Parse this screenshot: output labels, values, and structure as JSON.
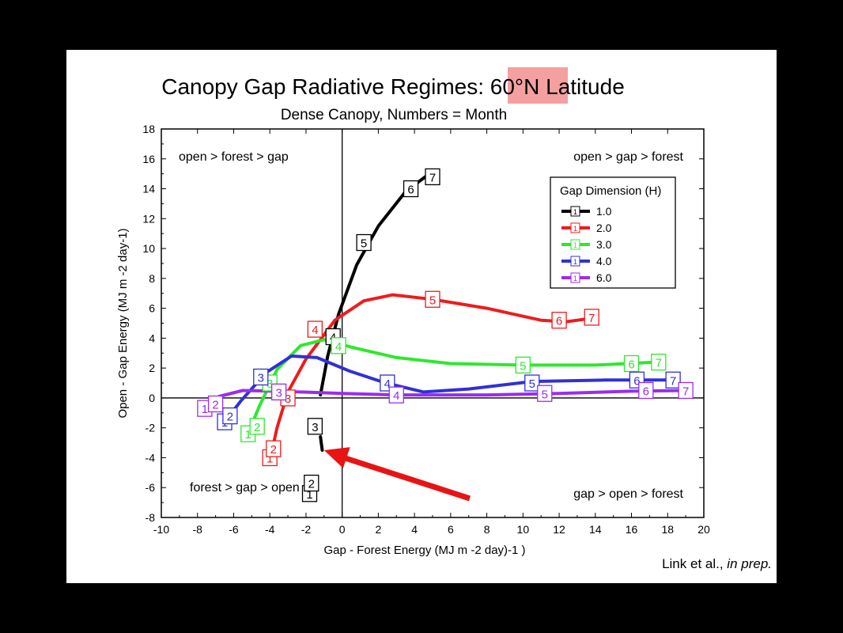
{
  "slide": {
    "credit_text": "Link et al., ",
    "credit_italic": "in prep."
  },
  "chart_data": {
    "type": "line",
    "title_parts": [
      "Canopy Gap Radiative Regimes: ",
      "60°N",
      " Latitude"
    ],
    "title_highlight_color": "#f4a0a0",
    "subtitle": "Dense Canopy, Numbers = Month",
    "xlabel": "Gap - Forest Energy (MJ m -2 day)-1 )",
    "ylabel": "Open - Gap Energy (MJ m -2 day-1)",
    "xlim": [
      -10,
      20
    ],
    "ylim": [
      -8,
      18
    ],
    "xticks": [
      "-10",
      "-8",
      "-6",
      "-4",
      "-2",
      "0",
      "2",
      "4",
      "6",
      "8",
      "10",
      "12",
      "14",
      "16",
      "18",
      "20"
    ],
    "yticks": [
      "-8",
      "-6",
      "-4",
      "-2",
      "0",
      "2",
      "4",
      "6",
      "8",
      "10",
      "12",
      "14",
      "16",
      "18"
    ],
    "grid": false,
    "quadrant_labels": [
      "open > forest > gap",
      "open > gap > forest",
      "forest > gap > open",
      "gap > open > forest"
    ],
    "legend": {
      "title": "Gap Dimension (H)",
      "position": "top-right",
      "marker_text": "1",
      "entries": [
        {
          "label": "1.0",
          "color": "#000000"
        },
        {
          "label": "2.0",
          "color": "#ee1c1c"
        },
        {
          "label": "3.0",
          "color": "#2ee82e"
        },
        {
          "label": "4.0",
          "color": "#3030d8"
        },
        {
          "label": "6.0",
          "color": "#9a2cf0"
        }
      ]
    },
    "series": [
      {
        "name": "1.0",
        "color": "#000000",
        "points": [
          {
            "m": "1",
            "x": -1.8,
            "y": -6.4
          },
          {
            "m": "2",
            "x": -1.7,
            "y": -5.7
          },
          {
            "m": "3",
            "x": -1.5,
            "y": -1.9
          },
          {
            "m": "4",
            "x": -0.5,
            "y": 4.1
          },
          {
            "m": "5",
            "x": 1.2,
            "y": 10.4
          },
          {
            "m": "6",
            "x": 3.8,
            "y": 14.0
          },
          {
            "m": "7",
            "x": 5.0,
            "y": 14.8
          }
        ],
        "curve": [
          [
            -1.1,
            -3.5
          ],
          [
            -1.2,
            -2.6
          ]
        ],
        "curve2": [
          [
            -1.2,
            0.2
          ],
          [
            -0.8,
            2.8
          ],
          [
            -0.2,
            5.6
          ],
          [
            0.8,
            8.9
          ],
          [
            2.0,
            11.5
          ],
          [
            3.5,
            13.8
          ],
          [
            4.6,
            14.8
          ]
        ]
      },
      {
        "name": "2.0",
        "color": "#ee1c1c",
        "points": [
          {
            "m": "1",
            "x": -4.0,
            "y": -4.0
          },
          {
            "m": "2",
            "x": -3.8,
            "y": -3.4
          },
          {
            "m": "3",
            "x": -3.0,
            "y": 0.0
          },
          {
            "m": "4",
            "x": -1.5,
            "y": 4.6
          },
          {
            "m": "5",
            "x": 5.0,
            "y": 6.6
          },
          {
            "m": "6",
            "x": 12.0,
            "y": 5.2
          },
          {
            "m": "7",
            "x": 13.8,
            "y": 5.4
          }
        ],
        "curve": [
          [
            -4.0,
            -4.2
          ],
          [
            -3.6,
            -2.0
          ],
          [
            -3.0,
            0.4
          ],
          [
            -2.0,
            2.6
          ],
          [
            -0.4,
            5.2
          ],
          [
            1.2,
            6.5
          ],
          [
            2.8,
            6.9
          ],
          [
            5.0,
            6.6
          ],
          [
            8.0,
            6.0
          ],
          [
            11.0,
            5.2
          ],
          [
            12.4,
            5.1
          ],
          [
            13.6,
            5.3
          ]
        ]
      },
      {
        "name": "3.0",
        "color": "#2ee82e",
        "points": [
          {
            "m": "1",
            "x": -5.2,
            "y": -2.4
          },
          {
            "m": "2",
            "x": -4.7,
            "y": -1.9
          },
          {
            "m": "3",
            "x": -4.0,
            "y": 1.0
          },
          {
            "m": "4",
            "x": -0.2,
            "y": 3.5
          },
          {
            "m": "5",
            "x": 10.0,
            "y": 2.2
          },
          {
            "m": "6",
            "x": 16.0,
            "y": 2.3
          },
          {
            "m": "7",
            "x": 17.5,
            "y": 2.4
          }
        ],
        "curve": [
          [
            -5.2,
            -2.4
          ],
          [
            -4.6,
            -0.6
          ],
          [
            -3.6,
            1.9
          ],
          [
            -2.3,
            3.5
          ],
          [
            -1.0,
            3.9
          ],
          [
            0.5,
            3.4
          ],
          [
            3.0,
            2.7
          ],
          [
            6.0,
            2.3
          ],
          [
            10.0,
            2.2
          ],
          [
            14.0,
            2.2
          ],
          [
            17.4,
            2.4
          ]
        ]
      },
      {
        "name": "4.0",
        "color": "#3030d8",
        "points": [
          {
            "m": "1",
            "x": -6.5,
            "y": -1.6
          },
          {
            "m": "2",
            "x": -6.2,
            "y": -1.2
          },
          {
            "m": "3",
            "x": -4.5,
            "y": 1.4
          },
          {
            "m": "4",
            "x": 2.5,
            "y": 1.0
          },
          {
            "m": "5",
            "x": 10.5,
            "y": 1.0
          },
          {
            "m": "6",
            "x": 16.3,
            "y": 1.2
          },
          {
            "m": "7",
            "x": 18.3,
            "y": 1.2
          }
        ],
        "curve": [
          [
            -6.5,
            -1.6
          ],
          [
            -5.6,
            -0.2
          ],
          [
            -4.2,
            1.7
          ],
          [
            -2.8,
            2.8
          ],
          [
            -1.4,
            2.7
          ],
          [
            0.4,
            1.8
          ],
          [
            2.4,
            1.0
          ],
          [
            4.5,
            0.4
          ],
          [
            7.0,
            0.6
          ],
          [
            10.5,
            1.1
          ],
          [
            14.5,
            1.2
          ],
          [
            18.0,
            1.2
          ]
        ]
      },
      {
        "name": "6.0",
        "color": "#9a2cf0",
        "points": [
          {
            "m": "1",
            "x": -7.6,
            "y": -0.7
          },
          {
            "m": "2",
            "x": -7.0,
            "y": -0.4
          },
          {
            "m": "3",
            "x": -3.5,
            "y": 0.4
          },
          {
            "m": "4",
            "x": 3.0,
            "y": 0.2
          },
          {
            "m": "5",
            "x": 11.2,
            "y": 0.3
          },
          {
            "m": "6",
            "x": 16.8,
            "y": 0.5
          },
          {
            "m": "7",
            "x": 19.0,
            "y": 0.5
          }
        ],
        "curve": [
          [
            -7.6,
            -0.7
          ],
          [
            -6.8,
            0.1
          ],
          [
            -5.5,
            0.5
          ],
          [
            -3.5,
            0.45
          ],
          [
            0.0,
            0.3
          ],
          [
            3.0,
            0.2
          ],
          [
            8.0,
            0.2
          ],
          [
            12.0,
            0.3
          ],
          [
            16.0,
            0.45
          ],
          [
            19.0,
            0.5
          ]
        ]
      }
    ]
  }
}
